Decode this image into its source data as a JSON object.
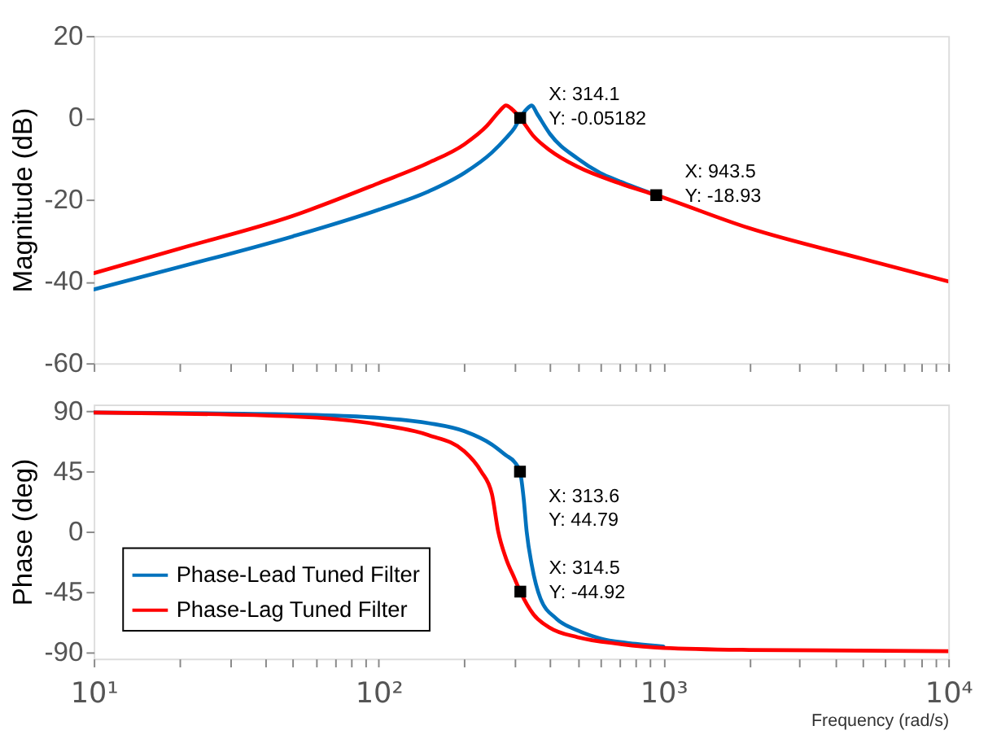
{
  "chart_data": [
    {
      "type": "line",
      "ylabel": "Magnitude (dB)",
      "log": "x",
      "tick_labels": "y",
      "grid": false,
      "xlim": [
        10,
        10000
      ],
      "ylim": [
        -60,
        20
      ],
      "yticks": [
        -60,
        -40,
        -20,
        0,
        20
      ],
      "xticks": [
        10,
        {
          "value": 20,
          "label": null
        },
        {
          "value": 30,
          "label": null
        },
        {
          "value": 40,
          "label": null
        },
        {
          "value": 50,
          "label": null
        },
        {
          "value": 60,
          "label": null
        },
        {
          "value": 70,
          "label": null
        },
        {
          "value": 80,
          "label": null
        },
        {
          "value": 90,
          "label": null
        },
        100,
        {
          "value": 200,
          "label": null
        },
        {
          "value": 300,
          "label": null
        },
        {
          "value": 400,
          "label": null
        },
        {
          "value": 500,
          "label": null
        },
        {
          "value": 600,
          "label": null
        },
        {
          "value": 700,
          "label": null
        },
        {
          "value": 800,
          "label": null
        },
        {
          "value": 900,
          "label": null
        },
        1000,
        {
          "value": 2000,
          "label": null
        },
        {
          "value": 3000,
          "label": null
        },
        {
          "value": 4000,
          "label": null
        },
        {
          "value": 5000,
          "label": null
        },
        {
          "value": 6000,
          "label": null
        },
        {
          "value": 7000,
          "label": null
        },
        {
          "value": 8000,
          "label": null
        },
        {
          "value": 9000,
          "label": null
        },
        10000
      ],
      "series": [
        {
          "color": "#0072bd",
          "x": [
            10,
            20,
            50,
            100,
            150,
            200,
            250,
            280,
            300,
            314.1,
            330,
            345,
            360,
            400,
            500,
            600,
            700,
            943.5
          ],
          "values": [
            -42,
            -36.5,
            -29,
            -22.5,
            -18,
            -13.5,
            -8.5,
            -5,
            -2.5,
            -0.05,
            2,
            3,
            1,
            -4,
            -10,
            -13.5,
            -15.5,
            -18.9
          ]
        },
        {
          "color": "#ff0000",
          "x": [
            10,
            20,
            50,
            100,
            150,
            200,
            240,
            265,
            280,
            295,
            314.1,
            350,
            400,
            500,
            700,
            943.5,
            2000,
            5000,
            10000
          ],
          "values": [
            -38,
            -32,
            -24,
            -16,
            -11,
            -6.5,
            -2,
            1.5,
            3,
            2,
            -0.05,
            -4.5,
            -8,
            -12,
            -16,
            -18.93,
            -27,
            -34.5,
            -40
          ]
        }
      ],
      "annotations": [
        {
          "text": "X: 314.1\nY: -0.05182",
          "x": 314.1,
          "y": -0.05182
        },
        {
          "text": "X: 943.5\nY: -18.93",
          "x": 943.5,
          "y": -18.93
        }
      ]
    },
    {
      "type": "line",
      "ylabel": "Phase (deg)",
      "xlabel": "Frequency  (rad/s)",
      "log": "x",
      "grid": false,
      "legend": "bottom left",
      "xlim": [
        10,
        10000
      ],
      "ylim": [
        -95,
        95
      ],
      "yticks": [
        -90,
        -45,
        0,
        45,
        90
      ],
      "xticks": [
        {
          "value": 10,
          "label": "10¹"
        },
        {
          "value": 20,
          "label": null
        },
        {
          "value": 30,
          "label": null
        },
        {
          "value": 40,
          "label": null
        },
        {
          "value": 50,
          "label": null
        },
        {
          "value": 60,
          "label": null
        },
        {
          "value": 70,
          "label": null
        },
        {
          "value": 80,
          "label": null
        },
        {
          "value": 90,
          "label": null
        },
        {
          "value": 100,
          "label": "10²"
        },
        {
          "value": 200,
          "label": null
        },
        {
          "value": 300,
          "label": null
        },
        {
          "value": 400,
          "label": null
        },
        {
          "value": 500,
          "label": null
        },
        {
          "value": 600,
          "label": null
        },
        {
          "value": 700,
          "label": null
        },
        {
          "value": 800,
          "label": null
        },
        {
          "value": 900,
          "label": null
        },
        {
          "value": 1000,
          "label": "10³"
        },
        {
          "value": 2000,
          "label": null
        },
        {
          "value": 3000,
          "label": null
        },
        {
          "value": 4000,
          "label": null
        },
        {
          "value": 5000,
          "label": null
        },
        {
          "value": 6000,
          "label": null
        },
        {
          "value": 7000,
          "label": null
        },
        {
          "value": 8000,
          "label": null
        },
        {
          "value": 9000,
          "label": null
        },
        {
          "value": 10000,
          "label": "10⁴"
        }
      ],
      "series": [
        {
          "name": "Phase-Lead Tuned Filter",
          "color": "#0072bd",
          "x": [
            10,
            50,
            100,
            150,
            200,
            250,
            280,
            300,
            313.6,
            323,
            331,
            345,
            370,
            420,
            500,
            600,
            800,
            1000
          ],
          "values": [
            89,
            87.5,
            85,
            81,
            75,
            65,
            57,
            52,
            44.79,
            25,
            0,
            -25,
            -50,
            -65,
            -74,
            -80,
            -84,
            -86
          ]
        },
        {
          "name": "Phase-Lag Tuned Filter",
          "color": "#ff0000",
          "x": [
            10,
            50,
            100,
            150,
            200,
            229,
            250,
            263,
            280,
            300,
            314.5,
            350,
            400,
            500,
            700,
            1000,
            2000,
            10000
          ],
          "values": [
            89,
            86,
            80,
            72,
            60,
            45,
            28,
            0,
            -20,
            -35,
            -44.92,
            -62,
            -72,
            -79,
            -84,
            -87,
            -88.5,
            -89.5
          ]
        }
      ],
      "annotations": [
        {
          "text": "X: 313.6\nY: 44.79",
          "x": 313.6,
          "y": 44.79
        },
        {
          "text": "X: 314.5\nY: -44.92",
          "x": 314.5,
          "y": -44.92
        }
      ]
    }
  ]
}
